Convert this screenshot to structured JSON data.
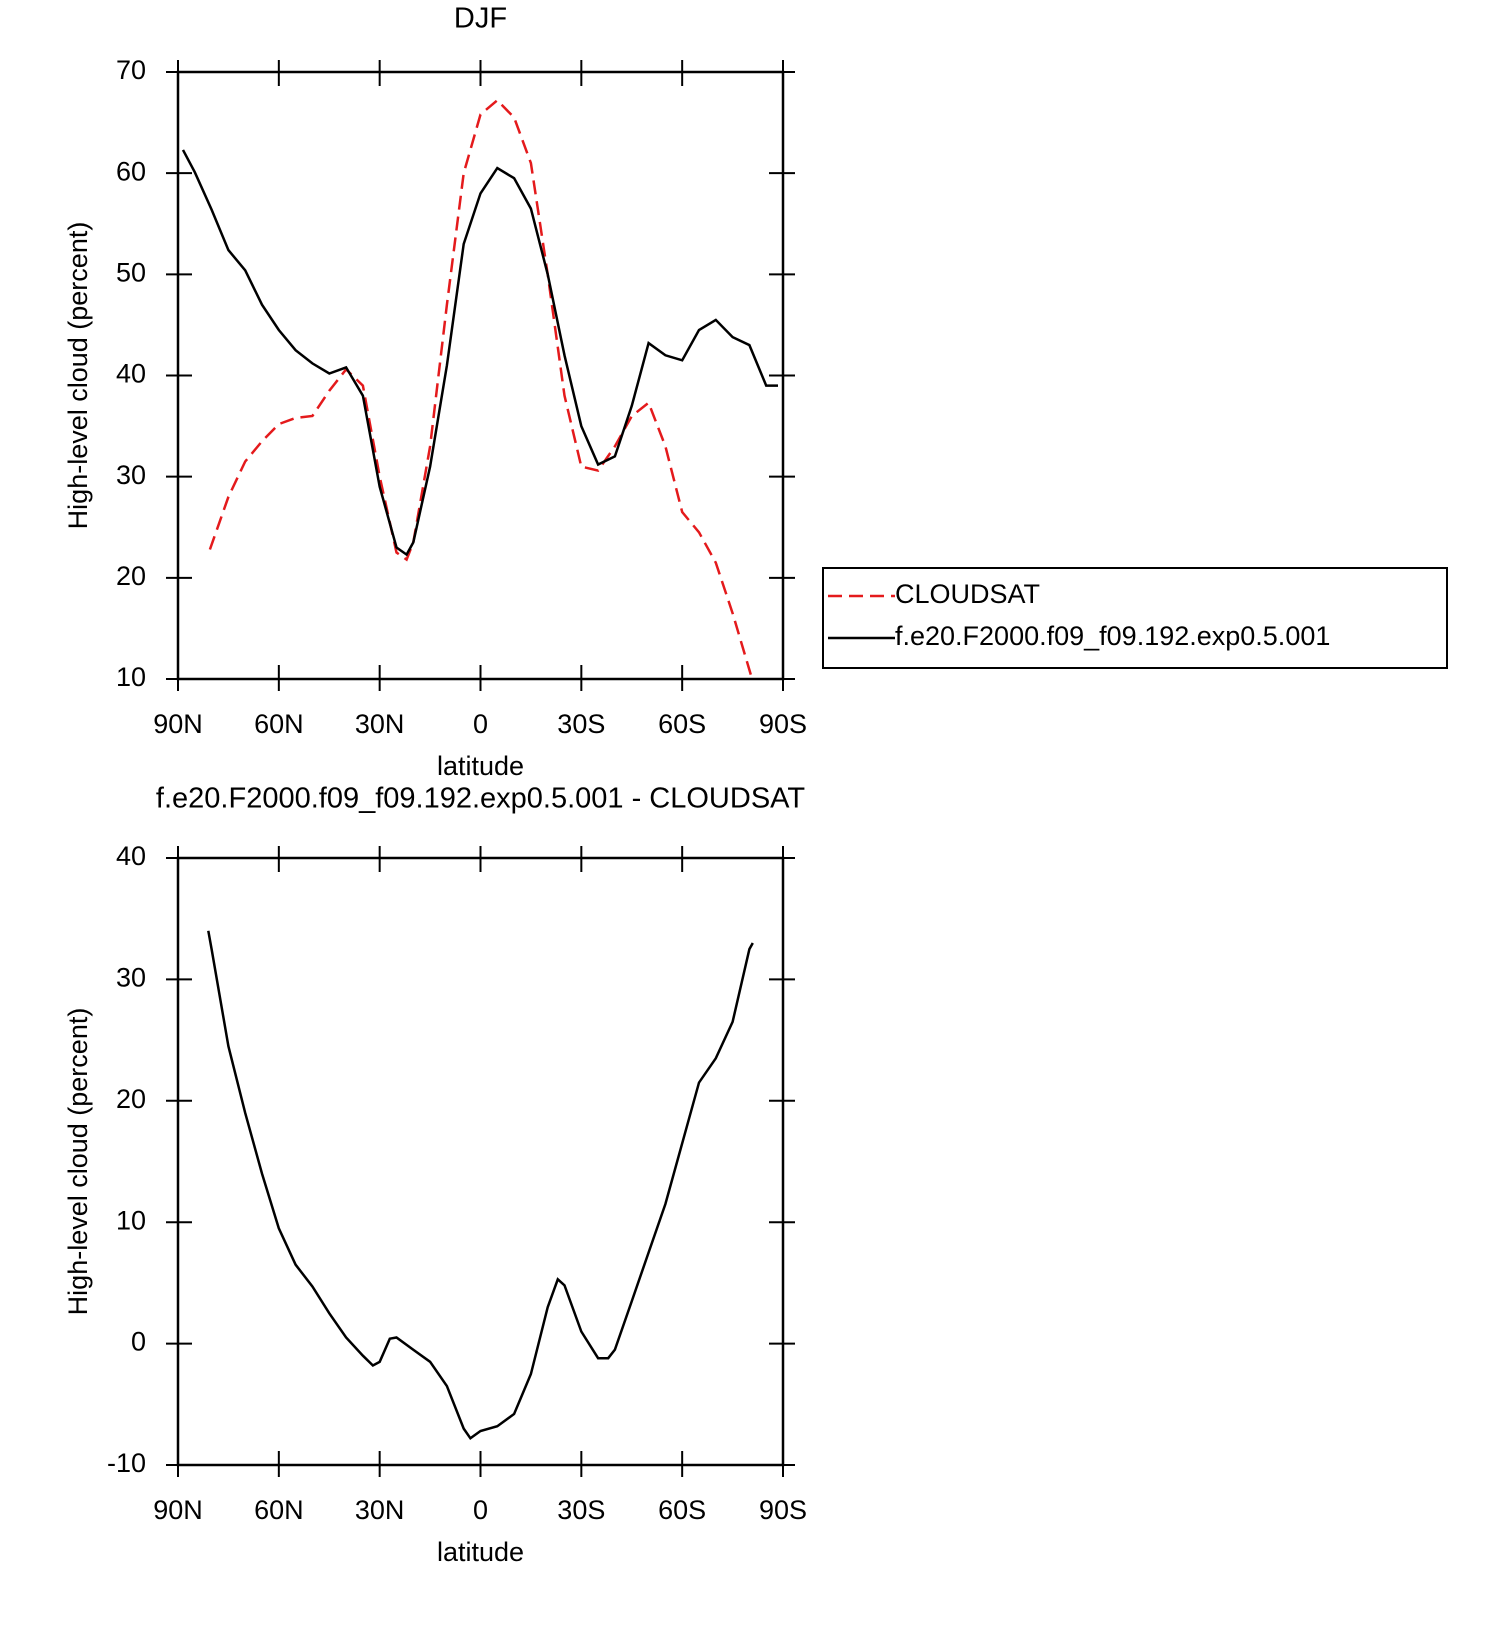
{
  "chart_data": [
    {
      "type": "line",
      "title": "DJF",
      "xlabel": "latitude",
      "ylabel": "High-level cloud (percent)",
      "xlim": [
        90,
        -90
      ],
      "xticks": [
        {
          "value": 90,
          "label": "90N"
        },
        {
          "value": 60,
          "label": "60N"
        },
        {
          "value": 30,
          "label": "30N"
        },
        0,
        {
          "value": -30,
          "label": "30S"
        },
        {
          "value": -60,
          "label": "60S"
        },
        {
          "value": -90,
          "label": "90S"
        }
      ],
      "ylim": [
        10,
        70
      ],
      "yticks": [
        10,
        20,
        30,
        40,
        50,
        60,
        70
      ],
      "legend": "right",
      "series": [
        {
          "name": "CLOUDSAT",
          "color": "#e41a1c",
          "linestyle": "dashed",
          "x": [
            80.5,
            75,
            70,
            65,
            60,
            55,
            50,
            45,
            40,
            35,
            30,
            25,
            22,
            20,
            15,
            10,
            5,
            0,
            -5,
            -10,
            -15,
            -20,
            -25,
            -30,
            -35,
            -40,
            -45,
            -50,
            -55,
            -60,
            -65,
            -70,
            -75,
            -80.8
          ],
          "values": [
            22.8,
            28,
            31.5,
            33.5,
            35.2,
            35.8,
            36,
            38.5,
            40.6,
            39,
            30,
            22.5,
            21.8,
            23.5,
            33,
            47,
            60,
            65.8,
            67.2,
            65.5,
            61,
            50,
            38,
            31,
            30.6,
            33,
            36,
            37.3,
            33,
            26.5,
            24.5,
            21.5,
            16.5,
            10
          ]
        },
        {
          "name": "f.e20.F2000.f09_f09.192.exp0.5.001",
          "color": "#000000",
          "linestyle": "solid",
          "x": [
            88.5,
            85,
            80,
            75,
            70,
            65,
            60,
            55,
            50,
            45,
            40,
            35,
            30,
            25,
            22,
            20,
            15,
            10,
            5,
            0,
            -5,
            -10,
            -15,
            -20,
            -25,
            -30,
            -35,
            -40,
            -45,
            -50,
            -55,
            -60,
            -65,
            -70,
            -75,
            -80,
            -85,
            -88.5
          ],
          "values": [
            62.3,
            60.1,
            56.4,
            52.4,
            50.4,
            47,
            44.5,
            42.5,
            41.2,
            40.2,
            40.8,
            38,
            29,
            23,
            22.3,
            23.5,
            31,
            41,
            53,
            58,
            60.5,
            59.5,
            56.5,
            50,
            42,
            35,
            31.2,
            32,
            37,
            43.2,
            42,
            41.5,
            44.5,
            45.5,
            43.8,
            43,
            39,
            39
          ]
        }
      ]
    },
    {
      "type": "line",
      "title": "f.e20.F2000.f09_f09.192.exp0.5.001 - CLOUDSAT",
      "xlabel": "latitude",
      "ylabel": "High-level cloud (percent)",
      "xlim": [
        90,
        -90
      ],
      "xticks": [
        {
          "value": 90,
          "label": "90N"
        },
        {
          "value": 60,
          "label": "60N"
        },
        {
          "value": 30,
          "label": "30N"
        },
        0,
        {
          "value": -30,
          "label": "30S"
        },
        {
          "value": -60,
          "label": "60S"
        },
        {
          "value": -90,
          "label": "90S"
        }
      ],
      "ylim": [
        -10,
        40
      ],
      "yticks": [
        -10,
        0,
        10,
        20,
        30,
        40
      ],
      "series": [
        {
          "color": "#000000",
          "linestyle": "solid",
          "x": [
            81,
            80,
            75,
            70,
            65,
            60,
            55,
            50,
            45,
            40,
            35,
            32,
            30,
            27,
            25,
            20,
            15,
            10,
            5,
            3,
            0,
            -5,
            -10,
            -15,
            -20,
            -23,
            -25,
            -30,
            -35,
            -38,
            -40,
            -45,
            -50,
            -55,
            -60,
            -65,
            -70,
            -75,
            -80,
            -81
          ],
          "values": [
            34,
            32.5,
            24.5,
            19,
            14,
            9.5,
            6.5,
            4.7,
            2.5,
            0.5,
            -1,
            -1.8,
            -1.5,
            0.4,
            0.5,
            -0.5,
            -1.5,
            -3.5,
            -7,
            -7.8,
            -7.2,
            -6.8,
            -5.8,
            -2.5,
            3,
            5.3,
            4.8,
            1,
            -1.2,
            -1.2,
            -0.5,
            3.5,
            7.5,
            11.5,
            16.5,
            21.5,
            23.5,
            26.5,
            32.5,
            33
          ]
        }
      ]
    }
  ]
}
